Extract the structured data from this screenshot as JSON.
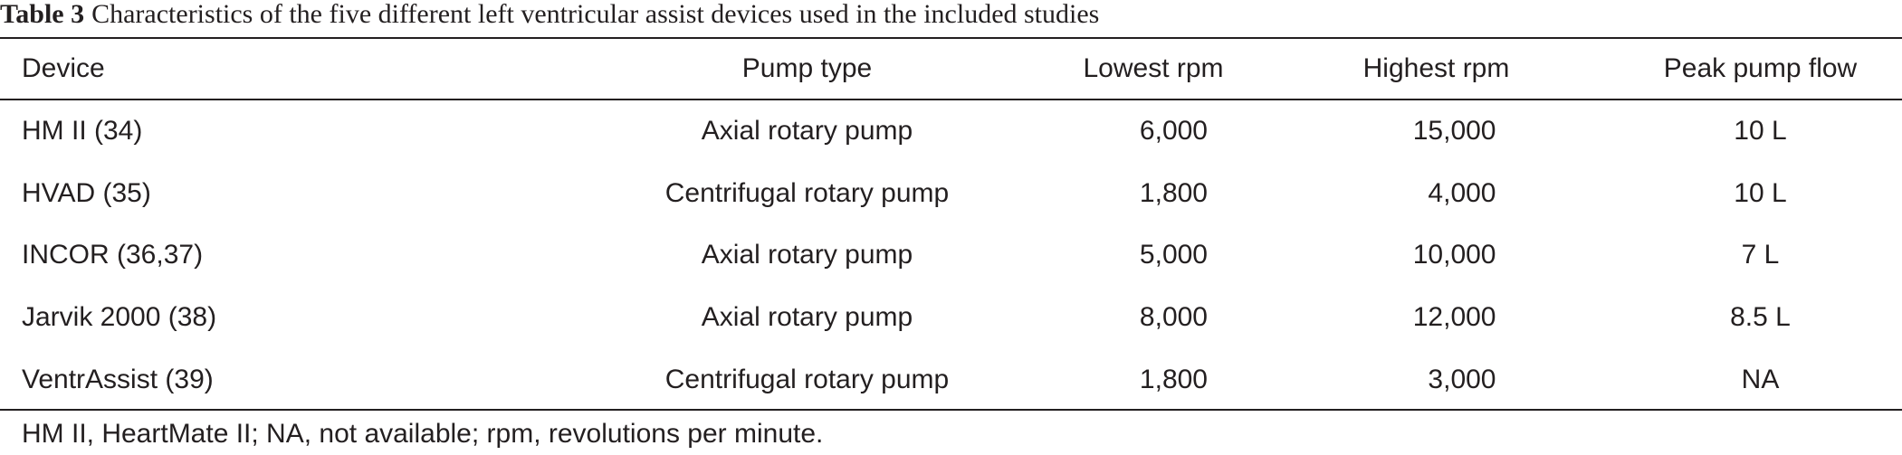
{
  "caption": {
    "label": "Table 3",
    "text": "Characteristics of the five different left ventricular assist devices used in the included studies"
  },
  "table": {
    "headers": {
      "device": "Device",
      "pump_type": "Pump type",
      "lowest_rpm": "Lowest rpm",
      "highest_rpm": "Highest rpm",
      "peak_flow": "Peak pump flow"
    },
    "rows": [
      {
        "device": "HM II (34)",
        "pump_type": "Axial rotary pump",
        "lowest_rpm": "6,000",
        "highest_rpm": "15,000",
        "peak_flow": "10 L"
      },
      {
        "device": "HVAD (35)",
        "pump_type": "Centrifugal rotary pump",
        "lowest_rpm": "1,800",
        "highest_rpm": "4,000",
        "peak_flow": "10 L"
      },
      {
        "device": "INCOR (36,37)",
        "pump_type": "Axial rotary pump",
        "lowest_rpm": "5,000",
        "highest_rpm": "10,000",
        "peak_flow": "7 L"
      },
      {
        "device": "Jarvik 2000 (38)",
        "pump_type": "Axial rotary pump",
        "lowest_rpm": "8,000",
        "highest_rpm": "12,000",
        "peak_flow": "8.5 L"
      },
      {
        "device": "VentrAssist (39)",
        "pump_type": "Centrifugal rotary pump",
        "lowest_rpm": "1,800",
        "highest_rpm": "3,000",
        "peak_flow": "NA"
      }
    ]
  },
  "footnote": "HM II, HeartMate II; NA, not available; rpm, revolutions per minute."
}
